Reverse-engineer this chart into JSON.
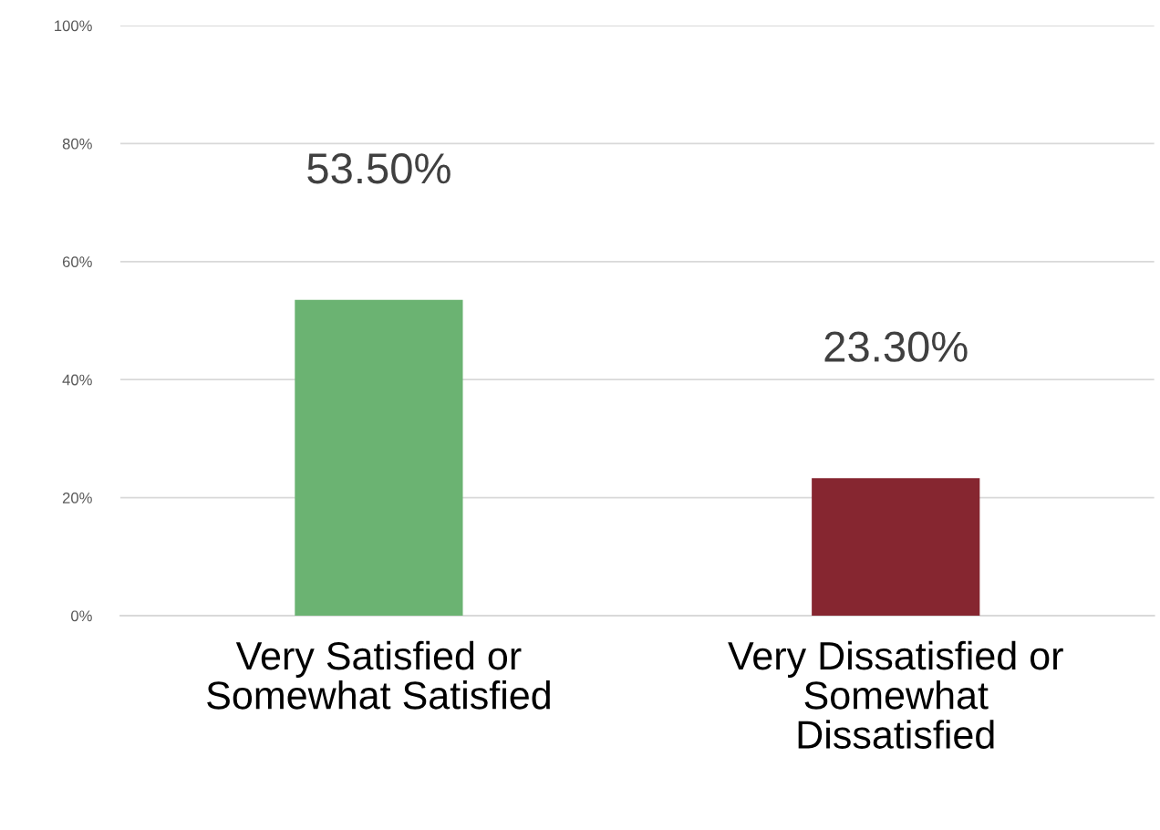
{
  "chart_data": {
    "type": "bar",
    "categories": [
      "Very Satisfied or\nSomewhat Satisfied",
      "Very Dissatisfied or\nSomewhat\nDissatisfied"
    ],
    "values": [
      53.5,
      23.3
    ],
    "colors": [
      "#6bb372",
      "#862630"
    ],
    "value_labels": [
      "53.50%",
      "23.30%"
    ],
    "ylim": [
      0,
      100
    ],
    "yticks": [
      {
        "value": 0,
        "label": "0%"
      },
      {
        "value": 20,
        "label": "20%"
      },
      {
        "value": 40,
        "label": "40%"
      },
      {
        "value": 60,
        "label": "60%"
      },
      {
        "value": 80,
        "label": "80%"
      },
      {
        "value": 100,
        "label": "100%"
      }
    ],
    "grid": "y",
    "legend": false
  }
}
